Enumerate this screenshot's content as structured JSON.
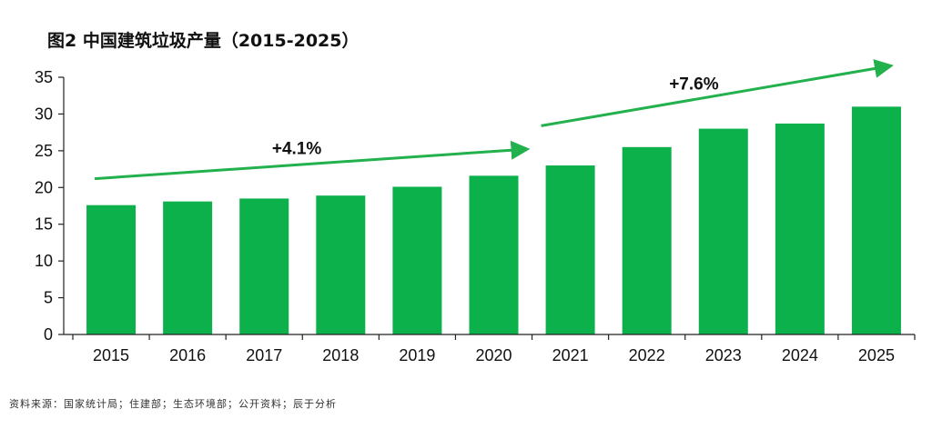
{
  "title": "图2 中国建筑垃圾产量（2015-2025）",
  "source": "资料来源：国家统计局；住建部；生态环境部；公开资料；辰于分析",
  "colors": {
    "bar": "#0DB14B",
    "arrow": "#22B14C",
    "axis": "#222222",
    "text": "#111111"
  },
  "chart_data": {
    "type": "bar",
    "title": "图2 中国建筑垃圾产量（2015-2025）",
    "xlabel": "",
    "ylabel": "",
    "categories": [
      "2015",
      "2016",
      "2017",
      "2018",
      "2019",
      "2020",
      "2021",
      "2022",
      "2023",
      "2024",
      "2025"
    ],
    "values": [
      17.6,
      18.1,
      18.5,
      18.9,
      20.1,
      21.6,
      23.0,
      25.5,
      28.0,
      28.7,
      31.0
    ],
    "ylim": [
      0,
      35
    ],
    "yticks": [
      "0",
      "5",
      "10",
      "15",
      "20",
      "25",
      "30",
      "35"
    ],
    "grid": false,
    "annotations": [
      {
        "text": "+4.1%",
        "from": "2015",
        "to": "2020",
        "from_value": 21.2,
        "to_value": 25.2
      },
      {
        "text": "+7.6%",
        "from": "2021",
        "to": "2025",
        "from_value": 28.4,
        "to_value": 36.5
      }
    ]
  }
}
